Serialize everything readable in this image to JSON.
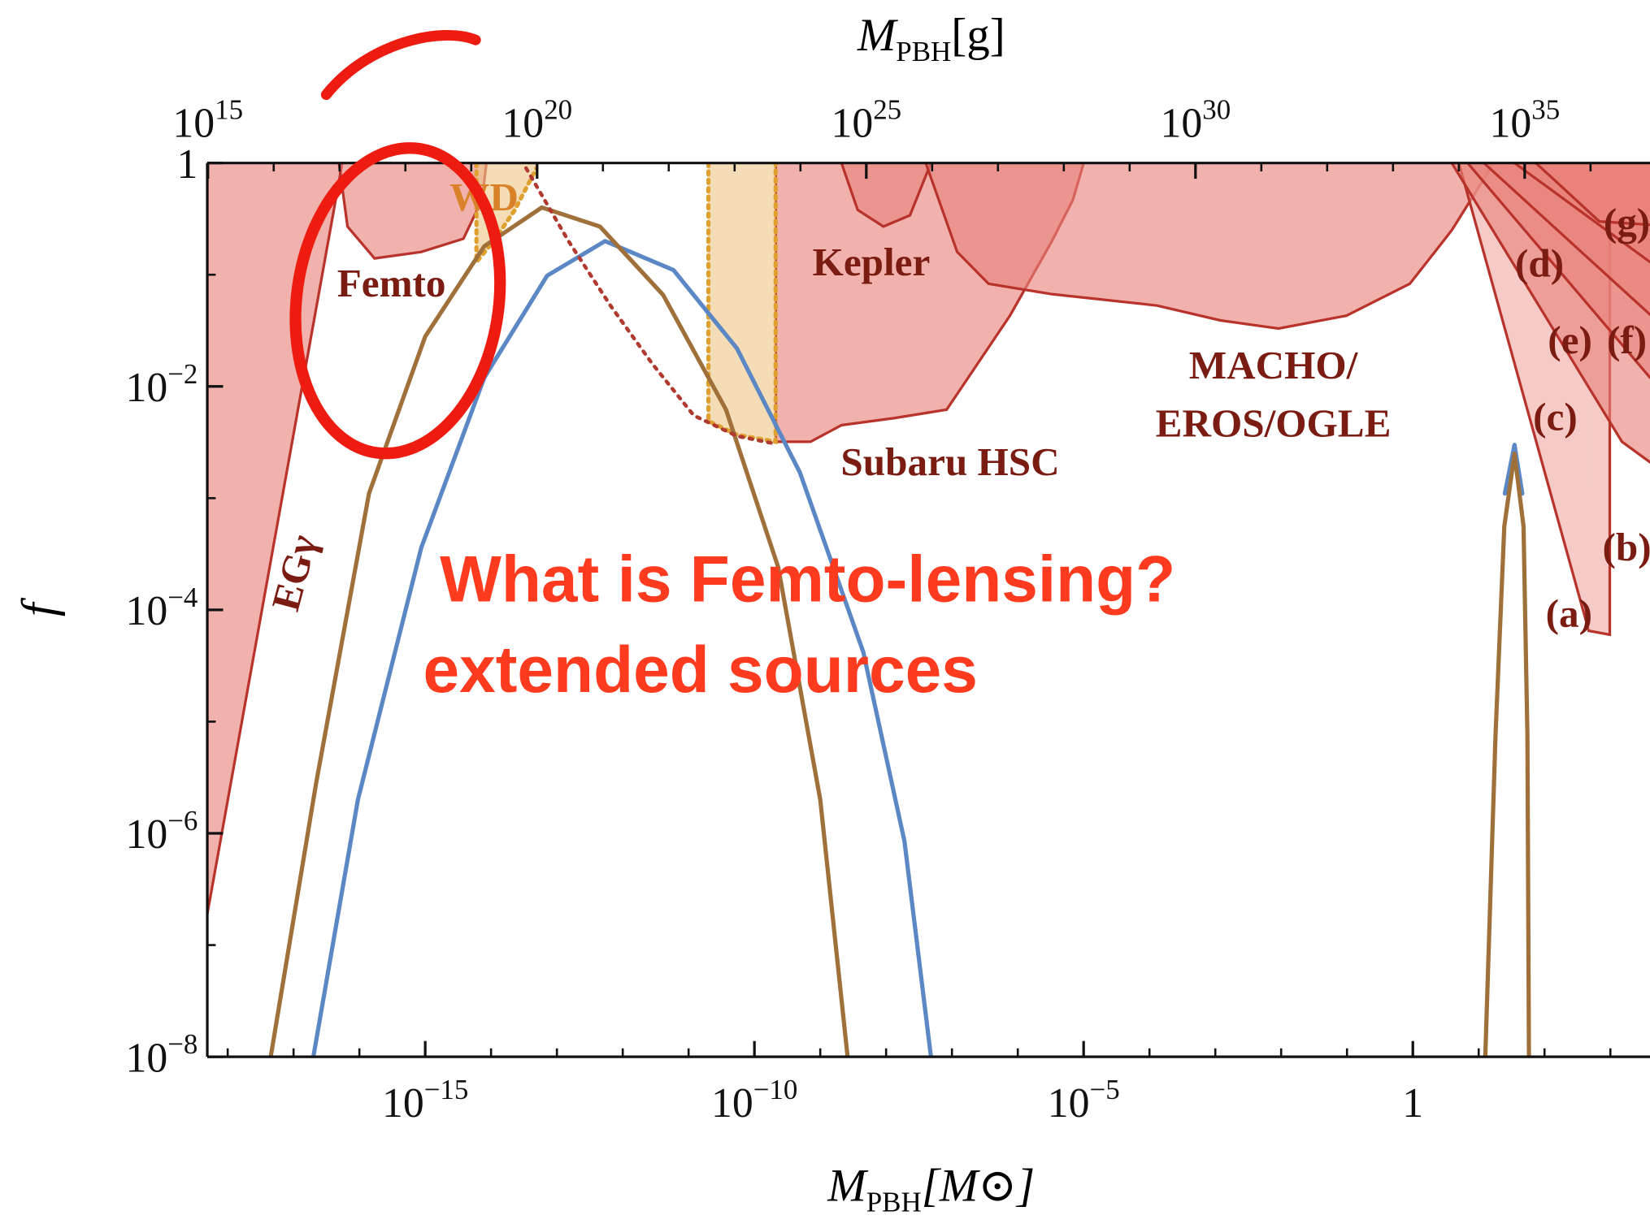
{
  "chart_data": {
    "type": "line",
    "x2label": {
      "symbol": "M",
      "subscript": "PBH",
      "unit": "[g]"
    },
    "xlabel": {
      "symbol": "M",
      "subscript": "PBH",
      "unit": "[M⊙]"
    },
    "ylabel": "f",
    "xscale": "log",
    "yscale": "log",
    "xlim": [
      4.9e-19,
      4000
    ],
    "x2lim": [
      980000000000000.0,
      8e+36
    ],
    "ylim": [
      1e-08,
      1
    ],
    "xticks": [
      {
        "value": 1e-15,
        "label": "10",
        "exponent": "−15"
      },
      {
        "value": 1e-10,
        "label": "10",
        "exponent": "−10"
      },
      {
        "value": 1e-05,
        "label": "10",
        "exponent": "−5"
      },
      1
    ],
    "x2ticks": [
      {
        "value": 1000000000000000.0,
        "label": "10",
        "exponent": "15"
      },
      {
        "value": 1e+20,
        "label": "10",
        "exponent": "20"
      },
      {
        "value": 1e+25,
        "label": "10",
        "exponent": "25"
      },
      {
        "value": 1e+30,
        "label": "10",
        "exponent": "30"
      },
      {
        "value": 1e+35,
        "label": "10",
        "exponent": "35"
      }
    ],
    "yticks": [
      {
        "value": 1e-08,
        "label": "10",
        "exponent": "−8"
      },
      {
        "value": 1e-06,
        "label": "10",
        "exponent": "−6"
      },
      {
        "value": 0.0001,
        "label": "10",
        "exponent": "−4"
      },
      {
        "value": 0.01,
        "label": "10",
        "exponent": "−2"
      },
      1
    ],
    "regions": [
      {
        "name": "EGγ",
        "color": "#e8837a",
        "edge_color": "#b8332b",
        "label_color": "#7b1c12",
        "x": [
          4.9e-19,
          5.5e-17
        ],
        "y": [
          1.9e-07,
          1
        ]
      },
      {
        "name": "Femto",
        "color": "#e8837a",
        "edge_color": "#b8332b",
        "label_color": "#7b1c12",
        "x": [
          4.9e-17,
          6.6e-17,
          1.7e-16,
          8.7e-16,
          3.8e-15,
          7.3e-15,
          8.5e-15
        ],
        "y": [
          1,
          0.27,
          0.14,
          0.16,
          0.21,
          0.47,
          1
        ]
      },
      {
        "name": "WD",
        "color": "#eec68a",
        "edge_color": "#e0a030",
        "label_color": "#d9822b",
        "x": [
          6e-15,
          6e-15,
          1.1e-14,
          2.3e-14,
          4.9e-14
        ],
        "y": [
          1,
          0.13,
          0.2,
          0.38,
          0.9
        ]
      },
      {
        "name": "Subaru HSC",
        "color": "#e8837a",
        "edge_color": "#b8332b",
        "label_color": "#7b1c12",
        "x": [
          2.1e-10,
          2.1e-10,
          7.1e-10,
          2.1e-09,
          1.3e-08,
          8.3e-08,
          7.6e-07,
          3.3e-06,
          6.9e-06,
          1e-05
        ],
        "y": [
          1,
          0.0032,
          0.0032,
          0.0045,
          0.0052,
          0.0062,
          0.043,
          0.2,
          0.47,
          1
        ]
      },
      {
        "name": "Kepler",
        "color": "#e8837a",
        "edge_color": "#b8332b",
        "label_color": "#7b1c12",
        "x": [
          2.1e-09,
          3.7e-09,
          9.1e-09,
          2.3e-08,
          4.8e-08
        ],
        "y": [
          1,
          0.38,
          0.27,
          0.34,
          1
        ]
      },
      {
        "color": "#eec68a",
        "edge_color": "#e0a030",
        "x": [
          2e-11,
          2e-11,
          5.4e-11,
          2.1e-10,
          2.1e-10
        ],
        "y": [
          1,
          0.0049,
          0.0037,
          0.0032,
          1
        ]
      },
      {
        "name_lines": [
          "MACHO/",
          "EROS/OGLE"
        ],
        "color": "#e8837a",
        "edge_color": "#b8332b",
        "label_color": "#7b1c12",
        "x": [
          4e-08,
          1.2e-07,
          3.6e-07,
          3.3e-06,
          0.00013,
          0.0012,
          0.0091,
          0.098,
          0.9,
          3.9,
          12,
          17
        ],
        "y": [
          1,
          0.16,
          0.083,
          0.067,
          0.053,
          0.039,
          0.033,
          0.043,
          0.083,
          0.25,
          0.72,
          1
        ]
      },
      {
        "name": "(a)",
        "color": "#f0aaa4",
        "edge_color": "#b8332b",
        "label_color": "#7b1c12",
        "x": [
          5,
          470
        ],
        "y": [
          1,
          6.5e-05
        ]
      },
      {
        "name": "(b)",
        "color": "#f0aaa4",
        "edge_color": "#b8332b",
        "label_color": "#7b1c12",
        "x": [
          470,
          980,
          980
        ],
        "y": [
          6.5e-05,
          6e-05,
          1
        ]
      },
      {
        "name": "(c)",
        "color": "#e8837a",
        "edge_color": "#b8332b",
        "label_color": "#7b1c12",
        "x": [
          3.9,
          1500,
          4000
        ],
        "y": [
          1,
          0.0032,
          0.0021
        ]
      },
      {
        "name": "(d)",
        "color": "#e8837a",
        "edge_color": "#b8332b",
        "label_color": "#7b1c12",
        "x": [
          6.8,
          4000
        ],
        "y": [
          1,
          0.012
        ]
      },
      {
        "name": "(e)",
        "color": "#e8837a",
        "edge_color": "#b8332b",
        "label_color": "#7b1c12",
        "x": [
          12,
          4000
        ],
        "y": [
          1,
          0.044
        ]
      },
      {
        "name": "(f)",
        "color": "#e8837a",
        "edge_color": "#b8332b",
        "label_color": "#7b1c12",
        "x": [
          35,
          4000
        ],
        "y": [
          1,
          0.13
        ]
      },
      {
        "name": "(g)",
        "color": "#e8837a",
        "edge_color": "#b8332b",
        "label_color": "#7b1c12",
        "x": [
          74,
          680,
          4000
        ],
        "y": [
          1,
          0.3,
          0.28
        ]
      }
    ],
    "series": [
      {
        "color": "#5b87c5",
        "linestyle": "solid",
        "x": [
          2e-17,
          9.5e-17,
          8.7e-16,
          7.9e-15,
          7.1e-14,
          5.4e-13,
          5.9e-12,
          5.4e-11,
          4.9e-10,
          4.5e-09,
          1.9e-08,
          4.8e-08,
          null,
          25,
          35,
          46
        ],
        "y": [
          1e-08,
          2e-06,
          0.00036,
          0.012,
          0.098,
          0.2,
          0.11,
          0.022,
          0.0017,
          4.2e-05,
          8.5e-07,
          1e-08,
          null,
          0.0011,
          0.003,
          0.0011
        ]
      },
      {
        "color": "#a0703a",
        "linestyle": "solid",
        "x": [
          4.5e-18,
          2.2e-17,
          1.4e-16,
          1e-15,
          7.9e-15,
          5.9e-14,
          4.5e-13,
          4.1e-12,
          3.7e-11,
          2.3e-10,
          1e-09,
          2.6e-09,
          null,
          12.6,
          18,
          24.5,
          35,
          48,
          55,
          58
        ],
        "y": [
          1e-08,
          2.8e-06,
          0.0011,
          0.028,
          0.18,
          0.4,
          0.27,
          0.066,
          0.0062,
          0.00024,
          2e-06,
          1e-08,
          null,
          1e-08,
          7.4e-06,
          0.00056,
          0.0025,
          0.00056,
          7.4e-06,
          1e-08
        ]
      },
      {
        "color": "#b03a30",
        "linestyle": "dotted",
        "x": [
          3.4e-14,
          1.5e-13,
          6.5e-13,
          2.8e-12,
          1.2e-11,
          5.4e-11,
          1.9e-10
        ],
        "y": [
          0.9,
          0.2,
          0.053,
          0.016,
          0.0055,
          0.0036,
          0.0031
        ]
      }
    ],
    "annotations": [
      "What is Femto-lensing?",
      "extended sources"
    ]
  }
}
